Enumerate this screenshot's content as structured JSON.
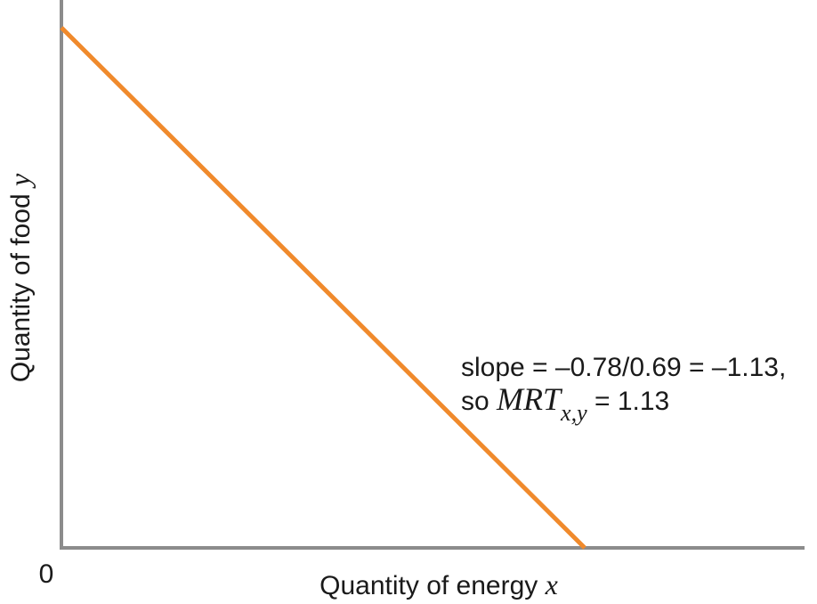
{
  "chart_data": {
    "type": "line",
    "xlabel": "Quantity of energy",
    "xlabel_var": "x",
    "ylabel": "Quantity of food",
    "ylabel_var": "y",
    "origin_label": "0",
    "line_color": "#f08a2c",
    "axis_color": "#8c8c8c",
    "series": [
      {
        "x": [
          0,
          1
        ],
        "y": [
          1.13,
          0
        ]
      }
    ],
    "xlim": [
      0,
      1.42
    ],
    "ylim": [
      0,
      1.19
    ],
    "annotation": {
      "line1": "slope = –0.78/0.69 = –1.13,",
      "line2_prefix": "so ",
      "line2_math": "MRT",
      "line2_sub": "x,y",
      "line2_suffix": " = 1.13"
    }
  }
}
